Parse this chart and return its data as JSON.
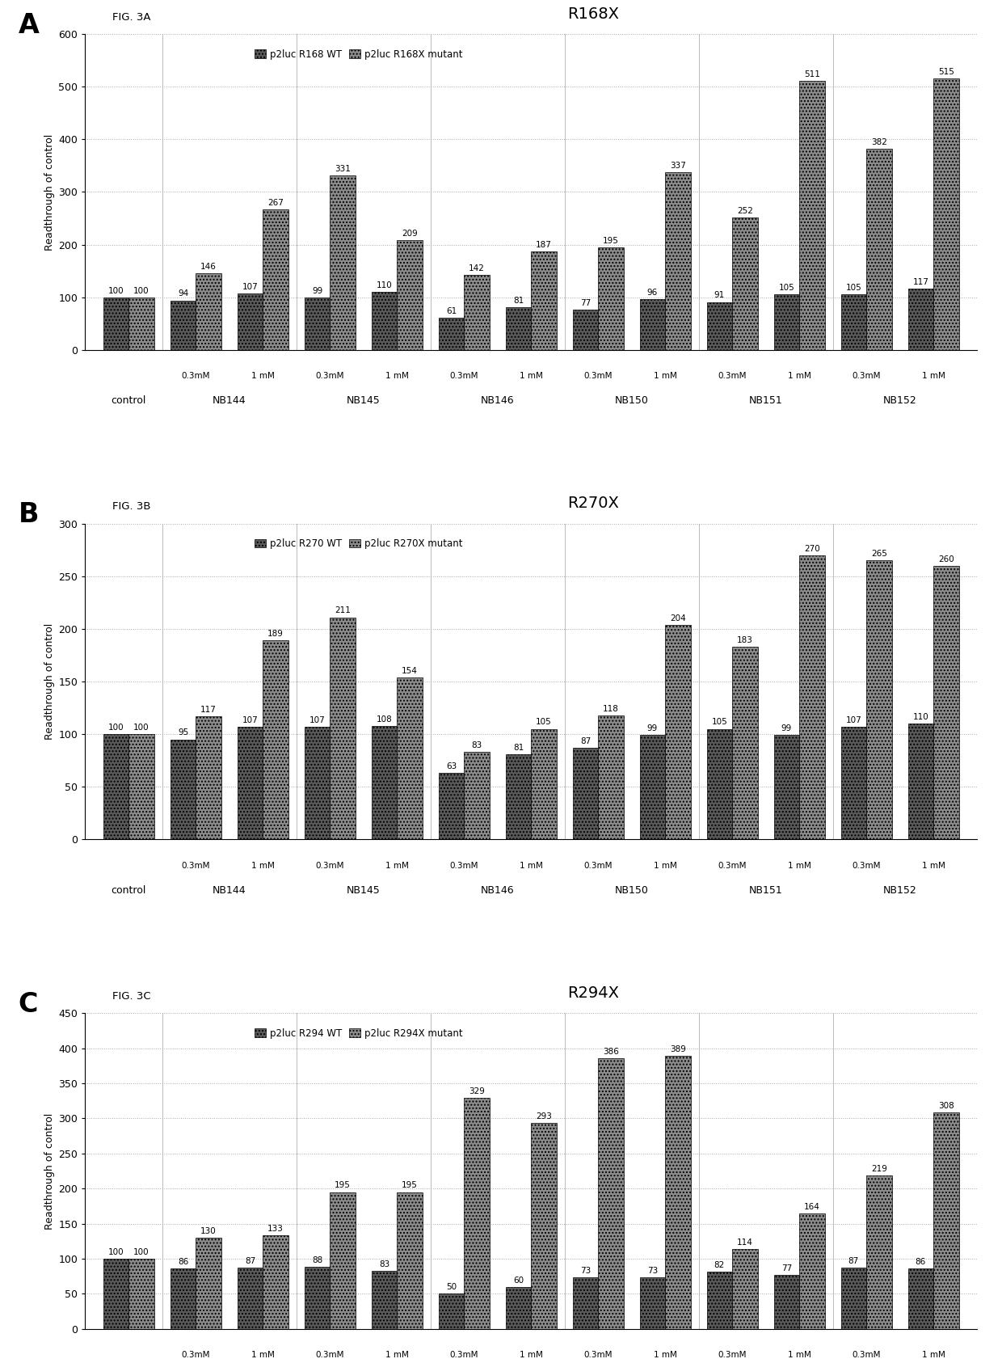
{
  "panels": [
    {
      "label": "A",
      "fig_label": "FIG. 3A",
      "title": "R168X",
      "legend": [
        "p2luc R168 WT",
        "p2luc R168X mutant"
      ],
      "ylim": [
        0,
        600
      ],
      "yticks": [
        0,
        100,
        200,
        300,
        400,
        500,
        600
      ],
      "bars": [
        {
          "wt": 100,
          "mut": 100
        },
        {
          "wt": 94,
          "mut": 146
        },
        {
          "wt": 107,
          "mut": 267
        },
        {
          "wt": 99,
          "mut": 331
        },
        {
          "wt": 110,
          "mut": 209
        },
        {
          "wt": 61,
          "mut": 142
        },
        {
          "wt": 81,
          "mut": 187
        },
        {
          "wt": 77,
          "mut": 195
        },
        {
          "wt": 96,
          "mut": 337
        },
        {
          "wt": 91,
          "mut": 252
        },
        {
          "wt": 105,
          "mut": 511
        },
        {
          "wt": 105,
          "mut": 382
        },
        {
          "wt": 117,
          "mut": 515
        }
      ]
    },
    {
      "label": "B",
      "fig_label": "FIG. 3B",
      "title": "R270X",
      "legend": [
        "p2luc R270 WT",
        "p2luc R270X mutant"
      ],
      "ylim": [
        0,
        300
      ],
      "yticks": [
        0,
        50,
        100,
        150,
        200,
        250,
        300
      ],
      "bars": [
        {
          "wt": 100,
          "mut": 100
        },
        {
          "wt": 95,
          "mut": 117
        },
        {
          "wt": 107,
          "mut": 189
        },
        {
          "wt": 107,
          "mut": 211
        },
        {
          "wt": 108,
          "mut": 154
        },
        {
          "wt": 63,
          "mut": 83
        },
        {
          "wt": 81,
          "mut": 105
        },
        {
          "wt": 87,
          "mut": 118
        },
        {
          "wt": 99,
          "mut": 204
        },
        {
          "wt": 105,
          "mut": 183
        },
        {
          "wt": 99,
          "mut": 270
        },
        {
          "wt": 107,
          "mut": 265
        },
        {
          "wt": 110,
          "mut": 260
        }
      ]
    },
    {
      "label": "C",
      "fig_label": "FIG. 3C",
      "title": "R294X",
      "legend": [
        "p2luc R294 WT",
        "p2luc R294X mutant"
      ],
      "ylim": [
        0,
        450
      ],
      "yticks": [
        0,
        50,
        100,
        150,
        200,
        250,
        300,
        350,
        400,
        450
      ],
      "bars": [
        {
          "wt": 100,
          "mut": 100
        },
        {
          "wt": 86,
          "mut": 130
        },
        {
          "wt": 87,
          "mut": 133
        },
        {
          "wt": 88,
          "mut": 195
        },
        {
          "wt": 83,
          "mut": 195
        },
        {
          "wt": 50,
          "mut": 329
        },
        {
          "wt": 60,
          "mut": 293
        },
        {
          "wt": 73,
          "mut": 386
        },
        {
          "wt": 73,
          "mut": 389
        },
        {
          "wt": 82,
          "mut": 114
        },
        {
          "wt": 77,
          "mut": 164
        },
        {
          "wt": 87,
          "mut": 219
        },
        {
          "wt": 86,
          "mut": 308
        }
      ]
    }
  ],
  "group_labels": [
    "control",
    "NB144",
    "NB145",
    "NB146",
    "NB150",
    "NB151",
    "NB152"
  ],
  "conc_labels": [
    "",
    "0.3mM",
    "1 mM",
    "0.3mM",
    "1 mM",
    "0.3mM",
    "1 mM",
    "0.3mM",
    "1 mM",
    "0.3mM",
    "1 mM",
    "0.3mM",
    "1 mM"
  ],
  "color_wt": "#5a5a5a",
  "color_mut": "#8c8c8c",
  "bar_width": 0.38
}
